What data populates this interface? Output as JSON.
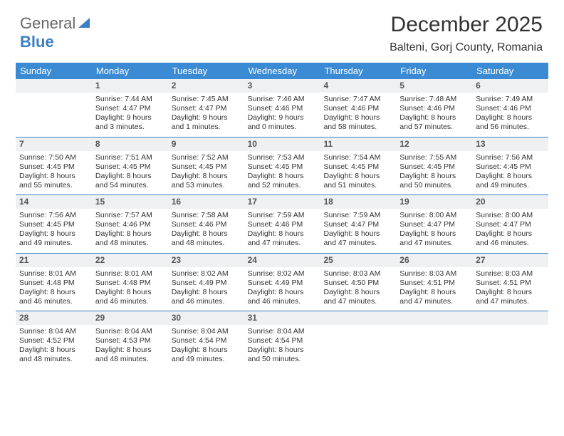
{
  "logo": {
    "part1": "General",
    "part2": "Blue"
  },
  "title": "December 2025",
  "location": "Balteni, Gorj County, Romania",
  "day_headers": [
    "Sunday",
    "Monday",
    "Tuesday",
    "Wednesday",
    "Thursday",
    "Friday",
    "Saturday"
  ],
  "colors": {
    "header_bg": "#3b8bd4",
    "header_text": "#ffffff",
    "rule": "#3b7fc4",
    "daynum_bg": "#eef0f2",
    "text": "#333333"
  },
  "weeks": [
    [
      {
        "n": "",
        "sr": "",
        "ss": "",
        "dl": ""
      },
      {
        "n": "1",
        "sr": "Sunrise: 7:44 AM",
        "ss": "Sunset: 4:47 PM",
        "dl": "Daylight: 9 hours and 3 minutes."
      },
      {
        "n": "2",
        "sr": "Sunrise: 7:45 AM",
        "ss": "Sunset: 4:47 PM",
        "dl": "Daylight: 9 hours and 1 minutes."
      },
      {
        "n": "3",
        "sr": "Sunrise: 7:46 AM",
        "ss": "Sunset: 4:46 PM",
        "dl": "Daylight: 9 hours and 0 minutes."
      },
      {
        "n": "4",
        "sr": "Sunrise: 7:47 AM",
        "ss": "Sunset: 4:46 PM",
        "dl": "Daylight: 8 hours and 58 minutes."
      },
      {
        "n": "5",
        "sr": "Sunrise: 7:48 AM",
        "ss": "Sunset: 4:46 PM",
        "dl": "Daylight: 8 hours and 57 minutes."
      },
      {
        "n": "6",
        "sr": "Sunrise: 7:49 AM",
        "ss": "Sunset: 4:46 PM",
        "dl": "Daylight: 8 hours and 56 minutes."
      }
    ],
    [
      {
        "n": "7",
        "sr": "Sunrise: 7:50 AM",
        "ss": "Sunset: 4:45 PM",
        "dl": "Daylight: 8 hours and 55 minutes."
      },
      {
        "n": "8",
        "sr": "Sunrise: 7:51 AM",
        "ss": "Sunset: 4:45 PM",
        "dl": "Daylight: 8 hours and 54 minutes."
      },
      {
        "n": "9",
        "sr": "Sunrise: 7:52 AM",
        "ss": "Sunset: 4:45 PM",
        "dl": "Daylight: 8 hours and 53 minutes."
      },
      {
        "n": "10",
        "sr": "Sunrise: 7:53 AM",
        "ss": "Sunset: 4:45 PM",
        "dl": "Daylight: 8 hours and 52 minutes."
      },
      {
        "n": "11",
        "sr": "Sunrise: 7:54 AM",
        "ss": "Sunset: 4:45 PM",
        "dl": "Daylight: 8 hours and 51 minutes."
      },
      {
        "n": "12",
        "sr": "Sunrise: 7:55 AM",
        "ss": "Sunset: 4:45 PM",
        "dl": "Daylight: 8 hours and 50 minutes."
      },
      {
        "n": "13",
        "sr": "Sunrise: 7:56 AM",
        "ss": "Sunset: 4:45 PM",
        "dl": "Daylight: 8 hours and 49 minutes."
      }
    ],
    [
      {
        "n": "14",
        "sr": "Sunrise: 7:56 AM",
        "ss": "Sunset: 4:45 PM",
        "dl": "Daylight: 8 hours and 49 minutes."
      },
      {
        "n": "15",
        "sr": "Sunrise: 7:57 AM",
        "ss": "Sunset: 4:46 PM",
        "dl": "Daylight: 8 hours and 48 minutes."
      },
      {
        "n": "16",
        "sr": "Sunrise: 7:58 AM",
        "ss": "Sunset: 4:46 PM",
        "dl": "Daylight: 8 hours and 48 minutes."
      },
      {
        "n": "17",
        "sr": "Sunrise: 7:59 AM",
        "ss": "Sunset: 4:46 PM",
        "dl": "Daylight: 8 hours and 47 minutes."
      },
      {
        "n": "18",
        "sr": "Sunrise: 7:59 AM",
        "ss": "Sunset: 4:47 PM",
        "dl": "Daylight: 8 hours and 47 minutes."
      },
      {
        "n": "19",
        "sr": "Sunrise: 8:00 AM",
        "ss": "Sunset: 4:47 PM",
        "dl": "Daylight: 8 hours and 47 minutes."
      },
      {
        "n": "20",
        "sr": "Sunrise: 8:00 AM",
        "ss": "Sunset: 4:47 PM",
        "dl": "Daylight: 8 hours and 46 minutes."
      }
    ],
    [
      {
        "n": "21",
        "sr": "Sunrise: 8:01 AM",
        "ss": "Sunset: 4:48 PM",
        "dl": "Daylight: 8 hours and 46 minutes."
      },
      {
        "n": "22",
        "sr": "Sunrise: 8:01 AM",
        "ss": "Sunset: 4:48 PM",
        "dl": "Daylight: 8 hours and 46 minutes."
      },
      {
        "n": "23",
        "sr": "Sunrise: 8:02 AM",
        "ss": "Sunset: 4:49 PM",
        "dl": "Daylight: 8 hours and 46 minutes."
      },
      {
        "n": "24",
        "sr": "Sunrise: 8:02 AM",
        "ss": "Sunset: 4:49 PM",
        "dl": "Daylight: 8 hours and 46 minutes."
      },
      {
        "n": "25",
        "sr": "Sunrise: 8:03 AM",
        "ss": "Sunset: 4:50 PM",
        "dl": "Daylight: 8 hours and 47 minutes."
      },
      {
        "n": "26",
        "sr": "Sunrise: 8:03 AM",
        "ss": "Sunset: 4:51 PM",
        "dl": "Daylight: 8 hours and 47 minutes."
      },
      {
        "n": "27",
        "sr": "Sunrise: 8:03 AM",
        "ss": "Sunset: 4:51 PM",
        "dl": "Daylight: 8 hours and 47 minutes."
      }
    ],
    [
      {
        "n": "28",
        "sr": "Sunrise: 8:04 AM",
        "ss": "Sunset: 4:52 PM",
        "dl": "Daylight: 8 hours and 48 minutes."
      },
      {
        "n": "29",
        "sr": "Sunrise: 8:04 AM",
        "ss": "Sunset: 4:53 PM",
        "dl": "Daylight: 8 hours and 48 minutes."
      },
      {
        "n": "30",
        "sr": "Sunrise: 8:04 AM",
        "ss": "Sunset: 4:54 PM",
        "dl": "Daylight: 8 hours and 49 minutes."
      },
      {
        "n": "31",
        "sr": "Sunrise: 8:04 AM",
        "ss": "Sunset: 4:54 PM",
        "dl": "Daylight: 8 hours and 50 minutes."
      },
      {
        "n": "",
        "sr": "",
        "ss": "",
        "dl": ""
      },
      {
        "n": "",
        "sr": "",
        "ss": "",
        "dl": ""
      },
      {
        "n": "",
        "sr": "",
        "ss": "",
        "dl": ""
      }
    ]
  ]
}
